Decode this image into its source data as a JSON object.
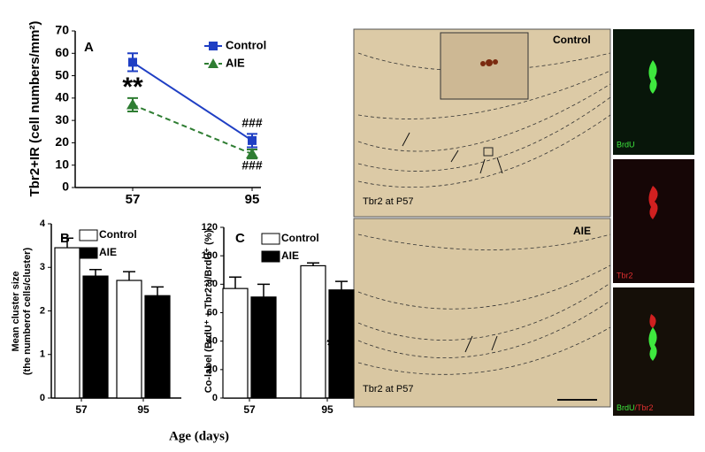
{
  "chart_data": [
    {
      "type": "line",
      "panel": "A",
      "ylabel": "Tbr2+IR (cell numbers/mm²)",
      "categories": [
        "57",
        "95"
      ],
      "series": [
        {
          "name": "Control",
          "color": "#1f3fc4",
          "marker": "square",
          "dashed": false,
          "values": [
            56,
            21
          ],
          "errors": [
            4,
            3
          ]
        },
        {
          "name": "AIE",
          "color": "#2e7d32",
          "marker": "triangle",
          "dashed": true,
          "values": [
            37,
            15
          ],
          "errors": [
            3,
            2
          ]
        }
      ],
      "ylim": [
        0,
        70
      ],
      "yticks": [
        0,
        10,
        20,
        30,
        40,
        50,
        60,
        70
      ],
      "annotations": [
        "**",
        "###",
        "###"
      ]
    },
    {
      "type": "bar",
      "panel": "B",
      "ylabel": [
        "Mean cluster size",
        "(the numberof cells/cluster)"
      ],
      "categories": [
        "57",
        "95"
      ],
      "series": [
        {
          "name": "Control",
          "color": "#ffffff",
          "values": [
            3.45,
            2.7
          ],
          "errors": [
            0.22,
            0.2
          ]
        },
        {
          "name": "AIE",
          "color": "#000000",
          "values": [
            2.8,
            2.35
          ],
          "errors": [
            0.15,
            0.2
          ]
        }
      ],
      "ylim": [
        0,
        4
      ],
      "yticks": [
        0,
        1,
        2,
        3,
        4
      ],
      "annotations": [
        "*"
      ]
    },
    {
      "type": "bar",
      "panel": "C",
      "ylabel": [
        "Co-label (BrdU⁺ + Tbr2⁺)/BrdU⁺ (%)"
      ],
      "categories": [
        "57",
        "95"
      ],
      "series": [
        {
          "name": "Control",
          "color": "#ffffff",
          "values": [
            77,
            93
          ],
          "errors": [
            8,
            2
          ]
        },
        {
          "name": "AIE",
          "color": "#000000",
          "values": [
            71,
            76
          ],
          "errors": [
            9,
            6
          ]
        }
      ],
      "ylim": [
        0,
        120
      ],
      "yticks": [
        0,
        20,
        40,
        60,
        80,
        100,
        120
      ],
      "annotations": [
        "*"
      ]
    }
  ],
  "x_axis_title": "Age (days)",
  "images": {
    "top_label": "Control",
    "top_caption": "Tbr2 at P57",
    "bottom_label": "AIE",
    "bottom_caption": "Tbr2 at P57",
    "green_label": "BrdU",
    "red_label": "Tbr2",
    "merge_label": [
      "BrdU",
      "/Tbr2"
    ]
  }
}
